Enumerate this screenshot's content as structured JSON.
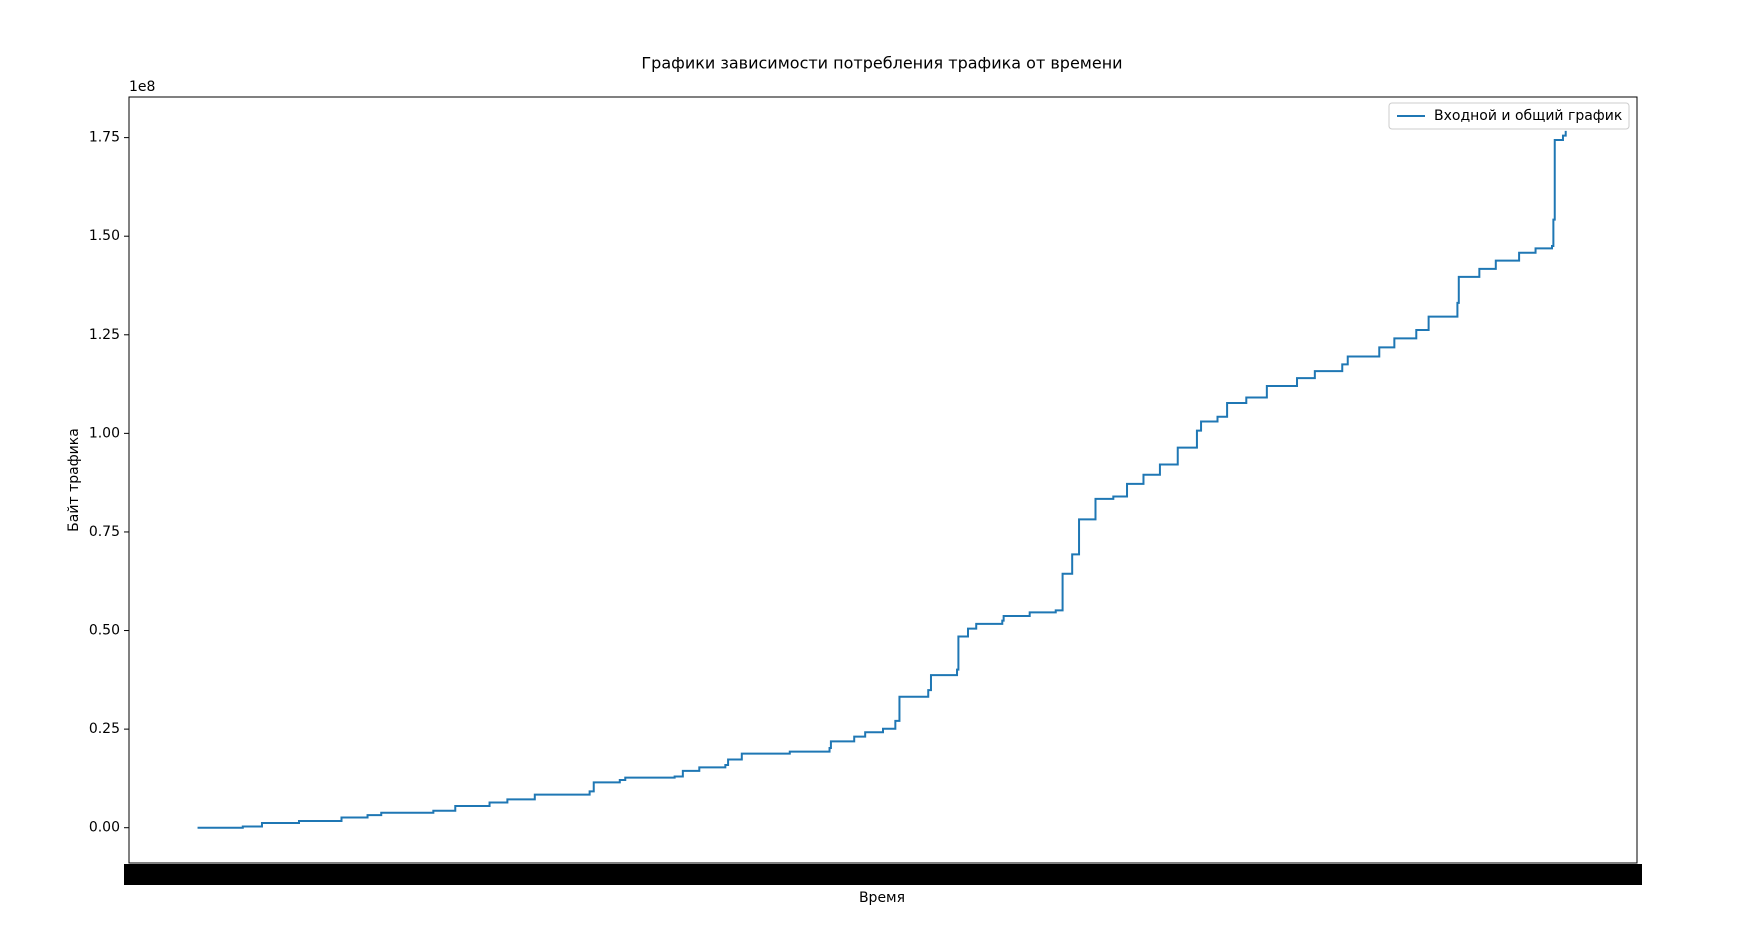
{
  "chart_data": {
    "type": "line",
    "title": "Графики зависимости потребления трафика от времени",
    "x_label": "Время",
    "y_label": "Байт трафика",
    "y_offset_text": "1e8",
    "legend_loc": "upper right",
    "step": true,
    "x": [
      0,
      3.3,
      4.7,
      7.4,
      10.5,
      12.4,
      13.4,
      17.2,
      18.8,
      21.3,
      22.6,
      24.6,
      28.6,
      28.9,
      30.8,
      31.2,
      34.8,
      35.4,
      36.6,
      38.5,
      38.7,
      39.7,
      43.2,
      46.1,
      46.2,
      47.9,
      48.7,
      50.0,
      50.9,
      51.2,
      53.3,
      53.5,
      55.4,
      55.5,
      56.2,
      56.8,
      58.7,
      58.8,
      60.7,
      62.6,
      63.1,
      63.8,
      64.3,
      65.5,
      66.8,
      67.8,
      69.0,
      70.2,
      71.5,
      72.9,
      73.2,
      74.4,
      75.1,
      76.5,
      78.0,
      80.2,
      81.5,
      83.5,
      83.9,
      86.2,
      87.3,
      88.9,
      89.8,
      91.9,
      92.0,
      93.5,
      94.7,
      96.4,
      97.6,
      98.8,
      98.9,
      99.0,
      99.6,
      99.8
    ],
    "series": [
      {
        "name": "Входной и общий график",
        "color": "#1f77b4",
        "values": [
          0,
          300000,
          1200000,
          1700000,
          2600000,
          3200000,
          3800000,
          4300000,
          5500000,
          6400000,
          7200000,
          8400000,
          9200000,
          11500000,
          12100000,
          12700000,
          13000000,
          14400000,
          15300000,
          15900000,
          17300000,
          18800000,
          19300000,
          20200000,
          21900000,
          23100000,
          24200000,
          25100000,
          27100000,
          33200000,
          34900000,
          38700000,
          40100000,
          48500000,
          50500000,
          51700000,
          52500000,
          53700000,
          54600000,
          55100000,
          64400000,
          69300000,
          78200000,
          83400000,
          84000000,
          87200000,
          89500000,
          92100000,
          96400000,
          100700000,
          103000000,
          104200000,
          107700000,
          109100000,
          112000000,
          114000000,
          115800000,
          117500000,
          119500000,
          121800000,
          124100000,
          126200000,
          129600000,
          133100000,
          139700000,
          141700000,
          143800000,
          145800000,
          146900000,
          147500000,
          154200000,
          174400000,
          175500000,
          176700000
        ]
      }
    ],
    "xlim": [
      -5,
      105
    ],
    "ylim": [
      -8950000,
      185300000
    ],
    "yticks": [
      {
        "value": 0,
        "label": "0.00"
      },
      {
        "value": 25000000,
        "label": "0.25"
      },
      {
        "value": 50000000,
        "label": "0.50"
      },
      {
        "value": 75000000,
        "label": "0.75"
      },
      {
        "value": 100000000,
        "label": "1.00"
      },
      {
        "value": 125000000,
        "label": "1.25"
      },
      {
        "value": 150000000,
        "label": "1.50"
      },
      {
        "value": 175000000,
        "label": "1.75"
      }
    ]
  }
}
